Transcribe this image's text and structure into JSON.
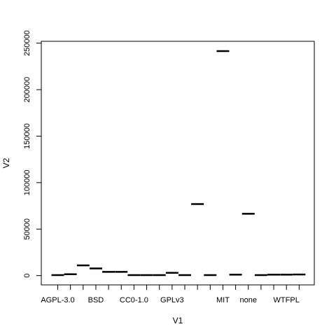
{
  "chart_data": {
    "type": "boxplot",
    "xlabel": "V1",
    "ylabel": "V2",
    "ylim": [
      -10000,
      252000
    ],
    "y_ticks": [
      0,
      50000,
      100000,
      150000,
      200000,
      250000
    ],
    "grid": false,
    "categories": [
      {
        "label": "AGPL-3.0",
        "value": 500
      },
      {
        "label": "",
        "value": 1500
      },
      {
        "label": "",
        "value": 11000
      },
      {
        "label": "BSD",
        "value": 7700
      },
      {
        "label": "",
        "value": 4000
      },
      {
        "label": "",
        "value": 4000
      },
      {
        "label": "CC0-1.0",
        "value": 500
      },
      {
        "label": "",
        "value": 500
      },
      {
        "label": "",
        "value": 500
      },
      {
        "label": "GPLv3",
        "value": 3000
      },
      {
        "label": "",
        "value": 500
      },
      {
        "label": "",
        "value": 77000
      },
      {
        "label": "",
        "value": 500
      },
      {
        "label": "MIT",
        "value": 241500
      },
      {
        "label": "",
        "value": 1000
      },
      {
        "label": "none",
        "value": 66500
      },
      {
        "label": "",
        "value": 500
      },
      {
        "label": "",
        "value": 1000
      },
      {
        "label": "WTFPL",
        "value": 1000
      },
      {
        "label": "",
        "value": 1200
      }
    ]
  }
}
